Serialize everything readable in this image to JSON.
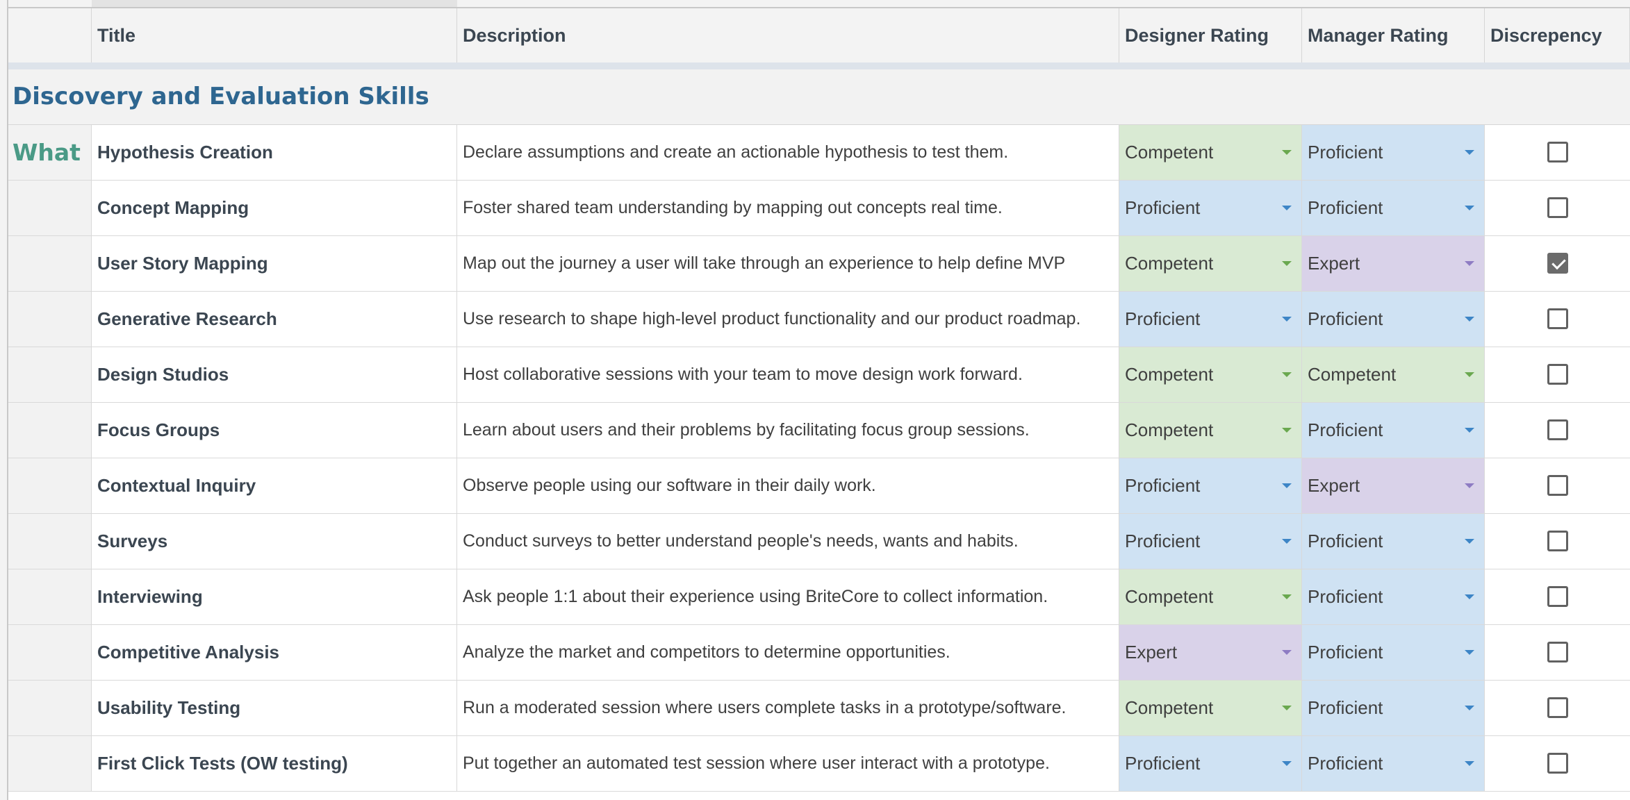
{
  "header": {
    "group_col": "",
    "title_col": "Title",
    "description_col": "Description",
    "designer_col": "Designer Rating",
    "manager_col": "Manager Rating",
    "discrepancy_col": "Discrepency"
  },
  "section": {
    "title": "Discovery and Evaluation Skills"
  },
  "rows": [
    {
      "group": "What",
      "title": "Hypothesis Creation",
      "description": "Declare assumptions and create an actionable hypothesis to test them.",
      "designer": "Competent",
      "manager": "Proficient",
      "discrepancy": false
    },
    {
      "group": "",
      "title": "Concept Mapping",
      "description": "Foster shared team understanding by mapping out concepts real time.",
      "designer": "Proficient",
      "manager": "Proficient",
      "discrepancy": false
    },
    {
      "group": "",
      "title": "User Story Mapping",
      "description": "Map out the journey a user will take through an experience to help define MVP",
      "designer": "Competent",
      "manager": "Expert",
      "discrepancy": true
    },
    {
      "group": "",
      "title": "Generative Research",
      "description": "Use research to shape high-level product functionality and our product roadmap.",
      "designer": "Proficient",
      "manager": "Proficient",
      "discrepancy": false
    },
    {
      "group": "",
      "title": "Design Studios",
      "description": "Host collaborative sessions with your team to move design work forward.",
      "designer": "Competent",
      "manager": "Competent",
      "discrepancy": false
    },
    {
      "group": "",
      "title": "Focus Groups",
      "description": "Learn about users and their problems by facilitating focus group sessions.",
      "designer": "Competent",
      "manager": "Proficient",
      "discrepancy": false
    },
    {
      "group": "",
      "title": "Contextual Inquiry",
      "description": "Observe people using our software in their daily work.",
      "designer": "Proficient",
      "manager": "Expert",
      "discrepancy": false
    },
    {
      "group": "",
      "title": "Surveys",
      "description": "Conduct surveys to better understand people's needs, wants and habits.",
      "designer": "Proficient",
      "manager": "Proficient",
      "discrepancy": false
    },
    {
      "group": "",
      "title": "Interviewing",
      "description": "Ask people 1:1 about their experience using BriteCore to collect information.",
      "designer": "Competent",
      "manager": "Proficient",
      "discrepancy": false
    },
    {
      "group": "",
      "title": "Competitive Analysis",
      "description": "Analyze the market and competitors to determine opportunities.",
      "designer": "Expert",
      "manager": "Proficient",
      "discrepancy": false
    },
    {
      "group": "",
      "title": "Usability Testing",
      "description": "Run a moderated session where users complete tasks in a prototype/software.",
      "designer": "Competent",
      "manager": "Proficient",
      "discrepancy": false
    },
    {
      "group": "",
      "title": "First Click Tests (OW testing)",
      "description": "Put together an automated test session where user interact with a prototype.",
      "designer": "Proficient",
      "manager": "Proficient",
      "discrepancy": false
    }
  ],
  "colors": {
    "competent": "#d9ead3",
    "proficient": "#cfe2f3",
    "expert": "#d9d2e9",
    "section_title": "#2e6690",
    "group_label": "#4a9a86"
  },
  "icons": {
    "dropdown": "dropdown-caret-icon",
    "checkbox": "checkbox-icon"
  }
}
